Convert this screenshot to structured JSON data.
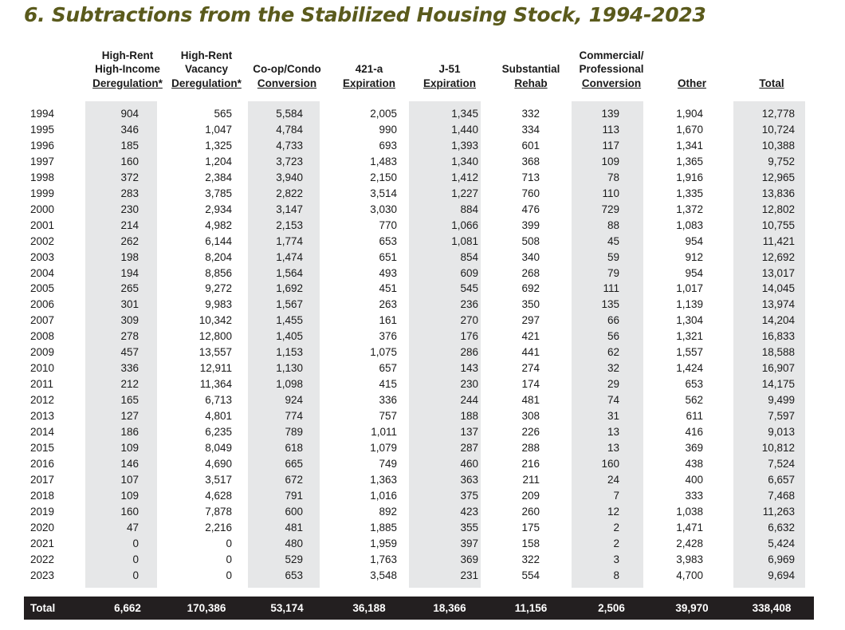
{
  "title": "6.  Subtractions from the Stabilized Housing Stock, 1994-2023",
  "columns": [
    {
      "lines": [
        "High-Rent",
        "High-Income",
        "Deregulation*"
      ]
    },
    {
      "lines": [
        "High-Rent",
        "Vacancy",
        "Deregulation*"
      ]
    },
    {
      "lines": [
        "Co-op/Condo",
        "Conversion"
      ]
    },
    {
      "lines": [
        "421-a",
        "Expiration"
      ]
    },
    {
      "lines": [
        "J-51",
        "Expiration"
      ]
    },
    {
      "lines": [
        "Substantial",
        "Rehab"
      ]
    },
    {
      "lines": [
        "Commercial/",
        "Professional",
        "Conversion"
      ]
    },
    {
      "lines": [
        "Other"
      ]
    },
    {
      "lines": [
        "Total"
      ]
    }
  ],
  "rows": [
    {
      "year": "1994",
      "values": [
        "904",
        "565",
        "5,584",
        "2,005",
        "1,345",
        "332",
        "139",
        "1,904",
        "12,778"
      ]
    },
    {
      "year": "1995",
      "values": [
        "346",
        "1,047",
        "4,784",
        "990",
        "1,440",
        "334",
        "113",
        "1,670",
        "10,724"
      ]
    },
    {
      "year": "1996",
      "values": [
        "185",
        "1,325",
        "4,733",
        "693",
        "1,393",
        "601",
        "117",
        "1,341",
        "10,388"
      ]
    },
    {
      "year": "1997",
      "values": [
        "160",
        "1,204",
        "3,723",
        "1,483",
        "1,340",
        "368",
        "109",
        "1,365",
        "9,752"
      ]
    },
    {
      "year": "1998",
      "values": [
        "372",
        "2,384",
        "3,940",
        "2,150",
        "1,412",
        "713",
        "78",
        "1,916",
        "12,965"
      ]
    },
    {
      "year": "1999",
      "values": [
        "283",
        "3,785",
        "2,822",
        "3,514",
        "1,227",
        "760",
        "110",
        "1,335",
        "13,836"
      ]
    },
    {
      "year": "2000",
      "values": [
        "230",
        "2,934",
        "3,147",
        "3,030",
        "884",
        "476",
        "729",
        "1,372",
        "12,802"
      ]
    },
    {
      "year": "2001",
      "values": [
        "214",
        "4,982",
        "2,153",
        "770",
        "1,066",
        "399",
        "88",
        "1,083",
        "10,755"
      ]
    },
    {
      "year": "2002",
      "values": [
        "262",
        "6,144",
        "1,774",
        "653",
        "1,081",
        "508",
        "45",
        "954",
        "11,421"
      ]
    },
    {
      "year": "2003",
      "values": [
        "198",
        "8,204",
        "1,474",
        "651",
        "854",
        "340",
        "59",
        "912",
        "12,692"
      ]
    },
    {
      "year": "2004",
      "values": [
        "194",
        "8,856",
        "1,564",
        "493",
        "609",
        "268",
        "79",
        "954",
        "13,017"
      ]
    },
    {
      "year": "2005",
      "values": [
        "265",
        "9,272",
        "1,692",
        "451",
        "545",
        "692",
        "111",
        "1,017",
        "14,045"
      ]
    },
    {
      "year": "2006",
      "values": [
        "301",
        "9,983",
        "1,567",
        "263",
        "236",
        "350",
        "135",
        "1,139",
        "13,974"
      ]
    },
    {
      "year": "2007",
      "values": [
        "309",
        "10,342",
        "1,455",
        "161",
        "270",
        "297",
        "66",
        "1,304",
        "14,204"
      ]
    },
    {
      "year": "2008",
      "values": [
        "278",
        "12,800",
        "1,405",
        "376",
        "176",
        "421",
        "56",
        "1,321",
        "16,833"
      ]
    },
    {
      "year": "2009",
      "values": [
        "457",
        "13,557",
        "1,153",
        "1,075",
        "286",
        "441",
        "62",
        "1,557",
        "18,588"
      ]
    },
    {
      "year": "2010",
      "values": [
        "336",
        "12,911",
        "1,130",
        "657",
        "143",
        "274",
        "32",
        "1,424",
        "16,907"
      ]
    },
    {
      "year": "2011",
      "values": [
        "212",
        "11,364",
        "1,098",
        "415",
        "230",
        "174",
        "29",
        "653",
        "14,175"
      ]
    },
    {
      "year": "2012",
      "values": [
        "165",
        "6,713",
        "924",
        "336",
        "244",
        "481",
        "74",
        "562",
        "9,499"
      ]
    },
    {
      "year": "2013",
      "values": [
        "127",
        "4,801",
        "774",
        "757",
        "188",
        "308",
        "31",
        "611",
        "7,597"
      ]
    },
    {
      "year": "2014",
      "values": [
        "186",
        "6,235",
        "789",
        "1,011",
        "137",
        "226",
        "13",
        "416",
        "9,013"
      ]
    },
    {
      "year": "2015",
      "values": [
        "109",
        "8,049",
        "618",
        "1,079",
        "287",
        "288",
        "13",
        "369",
        "10,812"
      ]
    },
    {
      "year": "2016",
      "values": [
        "146",
        "4,690",
        "665",
        "749",
        "460",
        "216",
        "160",
        "438",
        "7,524"
      ]
    },
    {
      "year": "2017",
      "values": [
        "107",
        "3,517",
        "672",
        "1,363",
        "363",
        "211",
        "24",
        "400",
        "6,657"
      ]
    },
    {
      "year": "2018",
      "values": [
        "109",
        "4,628",
        "791",
        "1,016",
        "375",
        "209",
        "7",
        "333",
        "7,468"
      ]
    },
    {
      "year": "2019",
      "values": [
        "160",
        "7,878",
        "600",
        "892",
        "423",
        "260",
        "12",
        "1,038",
        "11,263"
      ]
    },
    {
      "year": "2020",
      "values": [
        "47",
        "2,216",
        "481",
        "1,885",
        "355",
        "175",
        "2",
        "1,471",
        "6,632"
      ]
    },
    {
      "year": "2021",
      "values": [
        "0",
        "0",
        "480",
        "1,959",
        "397",
        "158",
        "2",
        "2,428",
        "5,424"
      ]
    },
    {
      "year": "2022",
      "values": [
        "0",
        "0",
        "529",
        "1,763",
        "369",
        "322",
        "3",
        "3,983",
        "6,969"
      ]
    },
    {
      "year": "2023",
      "values": [
        "0",
        "0",
        "653",
        "3,548",
        "231",
        "554",
        "8",
        "4,700",
        "9,694"
      ]
    }
  ],
  "total": {
    "label": "Total",
    "values": [
      "6,662",
      "170,386",
      "53,174",
      "36,188",
      "18,366",
      "11,156",
      "2,506",
      "39,970",
      "338,408"
    ]
  },
  "colors": {
    "title": "#5a5a1c",
    "shaded_column": "#e6e7e8",
    "total_bar": "#231f20",
    "total_text": "#ffffff"
  }
}
